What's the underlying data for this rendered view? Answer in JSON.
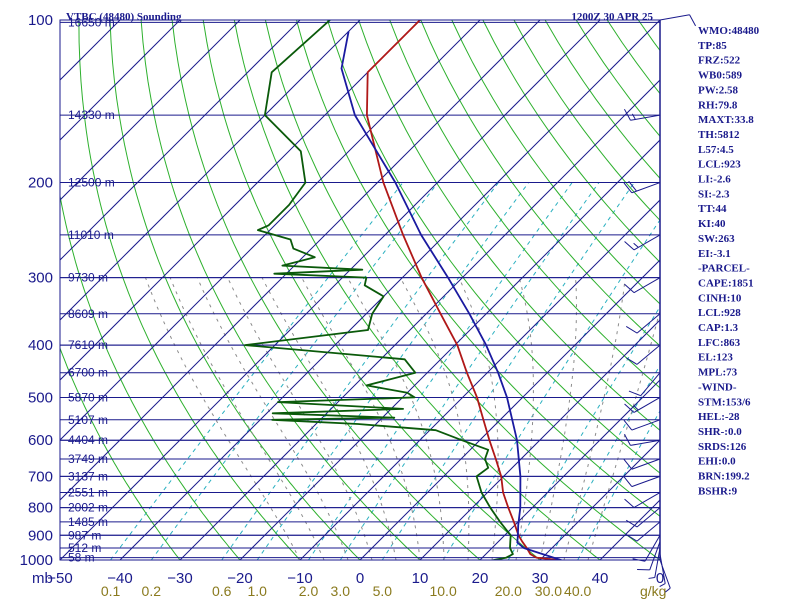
{
  "header": {
    "station": "VTBC (48480) Sounding",
    "datetime": "1200Z 30 APR 25"
  },
  "indices": [
    "WMO:48480",
    "TP:85",
    "FRZ:522",
    "WB0:589",
    "PW:2.58",
    "RH:79.8",
    "MAXT:33.8",
    "TH:5812",
    "L57:4.5",
    "LCL:923",
    "LI:-2.6",
    "SI:-2.3",
    "TT:44",
    "KI:40",
    "SW:263",
    "EI:-3.1",
    "-PARCEL-",
    "CAPE:1851",
    "CINH:10",
    "LCL:928",
    "CAP:1.3",
    "LFC:863",
    "EL:123",
    "MPL:73",
    "-WIND-",
    "STM:153/6",
    "HEL:-28",
    "SHR-:0.0",
    "SRDS:126",
    "EHI:0.0",
    "BRN:199.2",
    "BSHR:9"
  ],
  "colors": {
    "isobar": "#1a1a8c",
    "isotherm": "#1a1a8c",
    "dry_adiabat": "#2db02d",
    "moist_adiabat": "#8c8c8c",
    "mixing_ratio": "#2ab0c0",
    "temperature": "#b01818",
    "dewpoint": "#0a5a0a",
    "parcel": "#1a1aa0",
    "text": "#1a1a8c",
    "mixing_label": "#8a7a1e"
  },
  "chart_data": {
    "type": "skew-t log-p",
    "xlabel": "",
    "ylabel": "mb",
    "x_unit_label": "g/kg",
    "pressure_ticks": [
      100,
      200,
      300,
      400,
      500,
      600,
      700,
      800,
      900,
      1000
    ],
    "temperature_ticks": [
      "-50",
      "-40",
      "-30",
      "-20",
      "-10",
      "0",
      "10",
      "20",
      "30",
      "40",
      "0"
    ],
    "mixing_ratio_ticks": [
      "0.1",
      "0.2",
      "0.6",
      "1.0",
      "2.0",
      "3.0",
      "5.0",
      "10.0",
      "20.0",
      "30.0",
      "40.0"
    ],
    "temperature_range_c_at_bottom": [
      -50,
      50
    ],
    "pressure_range_mb": [
      100,
      1000
    ],
    "height_levels": [
      {
        "p": 101,
        "label": "16650 m"
      },
      {
        "p": 150,
        "label": "14330 m"
      },
      {
        "p": 200,
        "label": "12500 m"
      },
      {
        "p": 250,
        "label": "11010 m"
      },
      {
        "p": 300,
        "label": "9730 m"
      },
      {
        "p": 350,
        "label": "8609 m"
      },
      {
        "p": 400,
        "label": "7610 m"
      },
      {
        "p": 450,
        "label": "6700 m"
      },
      {
        "p": 500,
        "label": "5870 m"
      },
      {
        "p": 550,
        "label": "5107 m"
      },
      {
        "p": 600,
        "label": "4404 m"
      },
      {
        "p": 650,
        "label": "3749 m"
      },
      {
        "p": 700,
        "label": "3137 m"
      },
      {
        "p": 750,
        "label": "2551 m"
      },
      {
        "p": 800,
        "label": "2002 m"
      },
      {
        "p": 850,
        "label": "1485 m"
      },
      {
        "p": 900,
        "label": "987 m"
      },
      {
        "p": 950,
        "label": "512 m"
      },
      {
        "p": 990,
        "label": "58 m"
      }
    ],
    "series": [
      {
        "points": [
          [
            1002,
            33.8
          ],
          [
            990,
            29.0
          ],
          [
            975,
            27.4
          ],
          [
            950,
            25.8
          ],
          [
            925,
            24.0
          ],
          [
            900,
            22.3
          ],
          [
            850,
            19.3
          ],
          [
            800,
            16.0
          ],
          [
            750,
            12.6
          ],
          [
            700,
            9.6
          ],
          [
            650,
            5.8
          ],
          [
            600,
            1.6
          ],
          [
            550,
            -2.8
          ],
          [
            500,
            -7.6
          ],
          [
            450,
            -13.4
          ],
          [
            400,
            -19.6
          ],
          [
            350,
            -27.6
          ],
          [
            300,
            -36.8
          ],
          [
            250,
            -47.0
          ],
          [
            200,
            -59.0
          ],
          [
            150,
            -73.0
          ],
          [
            125,
            -80.0
          ],
          [
            100,
            -80.0
          ]
        ]
      },
      {
        "points": [
          [
            1002,
            22.0
          ],
          [
            990,
            24.0
          ],
          [
            975,
            24.5
          ],
          [
            950,
            23.0
          ],
          [
            925,
            22.0
          ],
          [
            900,
            21.0
          ],
          [
            850,
            17.0
          ],
          [
            800,
            13.0
          ],
          [
            750,
            9.0
          ],
          [
            700,
            5.5
          ],
          [
            675,
            6.0
          ],
          [
            650,
            4.0
          ],
          [
            625,
            3.0
          ],
          [
            600,
            -3.0
          ],
          [
            575,
            -9.0
          ],
          [
            560,
            -23.0
          ],
          [
            550,
            -38.0
          ],
          [
            545,
            -18.0
          ],
          [
            535,
            -39.0
          ],
          [
            525,
            -18.0
          ],
          [
            510,
            -40.0
          ],
          [
            500,
            -18.0
          ],
          [
            490,
            -20.0
          ],
          [
            475,
            -28.0
          ],
          [
            450,
            -22.0
          ],
          [
            425,
            -26.0
          ],
          [
            400,
            -55.0
          ],
          [
            375,
            -37.0
          ],
          [
            350,
            -39.0
          ],
          [
            325,
            -40.0
          ],
          [
            310,
            -45.0
          ],
          [
            300,
            -46.0
          ],
          [
            295,
            -62.0
          ],
          [
            290,
            -48.0
          ],
          [
            285,
            -62.0
          ],
          [
            275,
            -58.0
          ],
          [
            265,
            -63.0
          ],
          [
            255,
            -65.0
          ],
          [
            245,
            -72.0
          ],
          [
            240,
            -71.0
          ],
          [
            220,
            -71.0
          ],
          [
            200,
            -72.0
          ],
          [
            175,
            -78.0
          ],
          [
            150,
            -90.0
          ],
          [
            125,
            -96.0
          ],
          [
            100,
            -95.0
          ]
        ]
      },
      {
        "points": [
          [
            1002,
            33.8
          ],
          [
            950,
            25.3
          ],
          [
            928,
            23.3
          ],
          [
            900,
            22.2
          ],
          [
            863,
            20.6
          ],
          [
            800,
            18.0
          ],
          [
            700,
            12.8
          ],
          [
            600,
            6.2
          ],
          [
            500,
            -2.6
          ],
          [
            450,
            -8.2
          ],
          [
            400,
            -14.8
          ],
          [
            350,
            -22.8
          ],
          [
            300,
            -32.4
          ],
          [
            250,
            -44.0
          ],
          [
            200,
            -57.0
          ],
          [
            150,
            -75.0
          ],
          [
            123,
            -85.0
          ],
          [
            105,
            -90.0
          ]
        ]
      }
    ],
    "wind_barbs": [
      {
        "p": 1000,
        "dir": 160,
        "kt": 5
      },
      {
        "p": 975,
        "dir": 170,
        "kt": 5
      },
      {
        "p": 950,
        "dir": 190,
        "kt": 5
      },
      {
        "p": 925,
        "dir": 200,
        "kt": 10
      },
      {
        "p": 900,
        "dir": 210,
        "kt": 10
      },
      {
        "p": 850,
        "dir": 230,
        "kt": 10
      },
      {
        "p": 800,
        "dir": 230,
        "kt": 10
      },
      {
        "p": 750,
        "dir": 240,
        "kt": 10
      },
      {
        "p": 700,
        "dir": 250,
        "kt": 10
      },
      {
        "p": 650,
        "dir": 250,
        "kt": 10
      },
      {
        "p": 600,
        "dir": 260,
        "kt": 10
      },
      {
        "p": 550,
        "dir": 250,
        "kt": 10
      },
      {
        "p": 500,
        "dir": 240,
        "kt": 15
      },
      {
        "p": 450,
        "dir": 220,
        "kt": 10
      },
      {
        "p": 400,
        "dir": 230,
        "kt": 10
      },
      {
        "p": 350,
        "dir": 230,
        "kt": 10
      },
      {
        "p": 300,
        "dir": 240,
        "kt": 10
      },
      {
        "p": 250,
        "dir": 240,
        "kt": 15
      },
      {
        "p": 200,
        "dir": 250,
        "kt": 20
      },
      {
        "p": 150,
        "dir": 260,
        "kt": 15
      },
      {
        "p": 100,
        "dir": 80,
        "kt": 10
      }
    ]
  }
}
